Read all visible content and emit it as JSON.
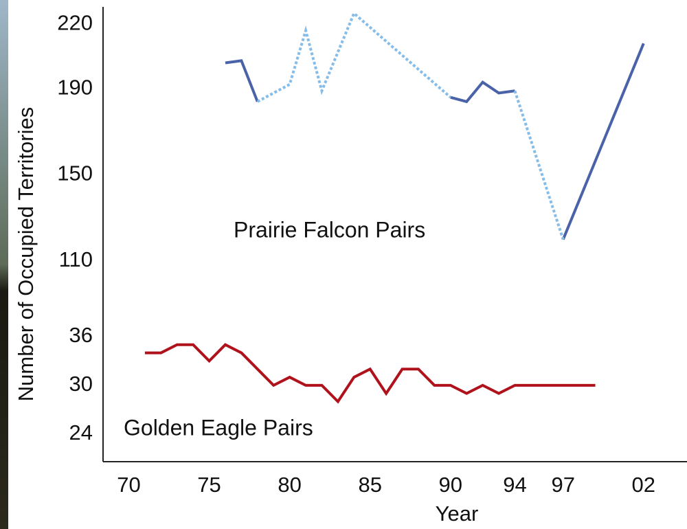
{
  "chart_data": {
    "type": "line",
    "x_label": "Year",
    "y_label": "Number of Occupied Territories",
    "xlim": [
      68.4,
      104.7
    ],
    "xticks": [
      70,
      75,
      80,
      85,
      90,
      94,
      97,
      {
        "value": 102,
        "label": "02"
      }
    ],
    "panels": [
      {
        "annotation": "Prairie Falcon Pairs",
        "ylim": [
          100.4,
          228
        ],
        "yticks": [
          110,
          150,
          190,
          220
        ],
        "series": [
          {
            "style": "solid",
            "color": "#4a62a8",
            "x": [
              76,
              77,
              78,
              null,
              90,
              91,
              92,
              93,
              94,
              null,
              97,
              102
            ],
            "values": [
              202,
              203,
              184,
              null,
              186,
              184,
              193,
              188,
              189,
              null,
              120,
              211
            ]
          },
          {
            "style": "dotted",
            "color": "#86bde8",
            "x": [
              78,
              80,
              81,
              82,
              84,
              90,
              null,
              94,
              97
            ],
            "values": [
              184,
              192,
              217,
              189,
              225,
              186,
              null,
              189,
              120
            ]
          }
        ]
      },
      {
        "annotation": "Golden Eagle Pairs",
        "ylim": [
          20.6,
          39.8
        ],
        "yticks": [
          24,
          30,
          36
        ],
        "series": [
          {
            "style": "solid",
            "color": "#b0121b",
            "x": [
              71,
              72,
              73,
              74,
              75,
              76,
              77,
              78,
              79,
              80,
              81,
              82,
              83,
              84,
              85,
              86,
              87,
              88,
              89,
              90,
              91,
              92,
              93,
              94,
              99
            ],
            "values": [
              34,
              34,
              35,
              35,
              33,
              35,
              34,
              32,
              30,
              31,
              30,
              30,
              28,
              31,
              32,
              29,
              32,
              32,
              30,
              30,
              29,
              30,
              29,
              30,
              30
            ]
          }
        ]
      }
    ]
  }
}
